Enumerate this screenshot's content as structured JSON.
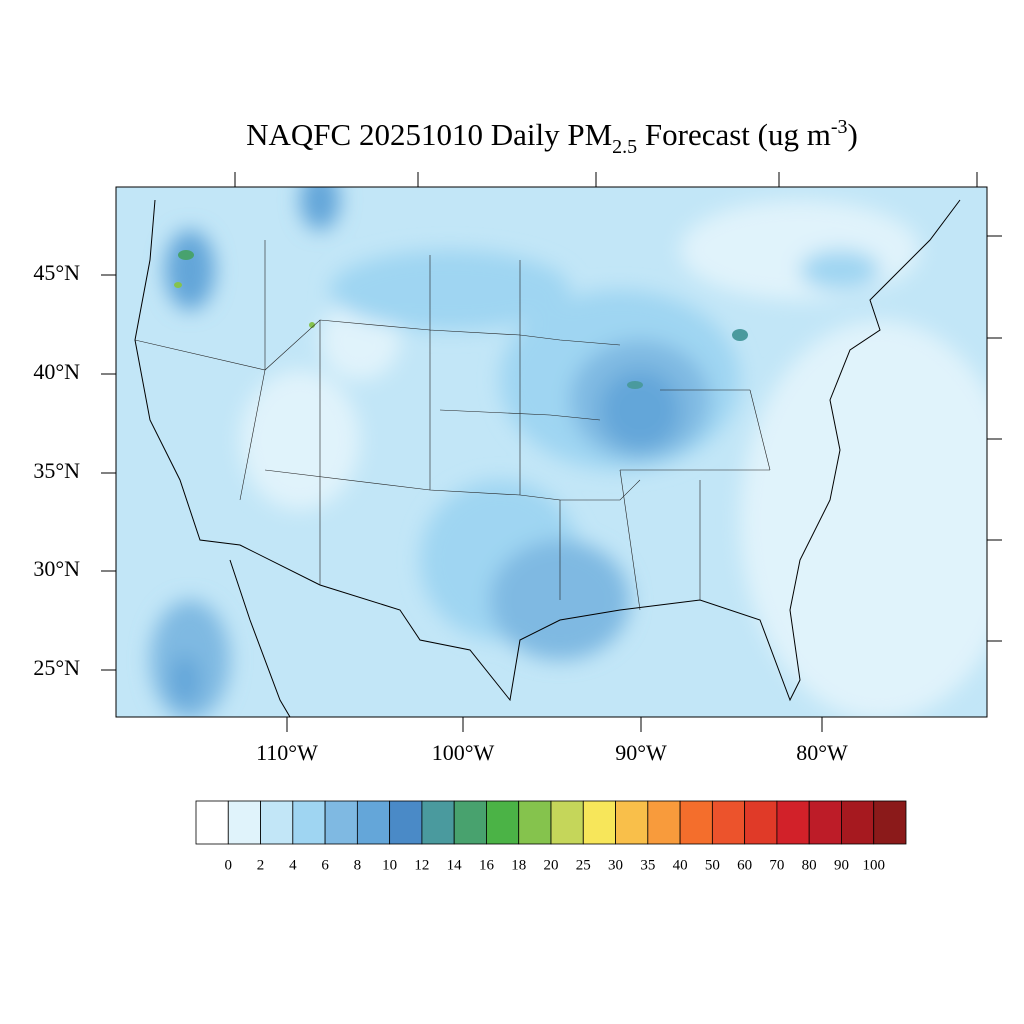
{
  "title": {
    "main": "NAQFC 20251010 Daily PM",
    "subscript": "2.5",
    "rest": " Forecast (ug m",
    "superscript": "-3",
    "end": ")"
  },
  "map": {
    "latitude_labels": [
      "45°N",
      "40°N",
      "35°N",
      "30°N",
      "25°N"
    ],
    "longitude_labels": [
      "110°W",
      "100°W",
      "90°W",
      "80°W"
    ]
  },
  "colorbar": {
    "labels": [
      "0",
      "2",
      "4",
      "6",
      "8",
      "10",
      "12",
      "14",
      "16",
      "18",
      "20",
      "25",
      "30",
      "35",
      "40",
      "50",
      "60",
      "70",
      "80",
      "90",
      "100"
    ],
    "colors": [
      "#ffffff",
      "#e0f3fb",
      "#c2e6f7",
      "#9fd5f2",
      "#7fb9e2",
      "#64a6d9",
      "#4a8ac7",
      "#4a9a9e",
      "#48a26e",
      "#4bb346",
      "#85c34d",
      "#c5d65a",
      "#f7e65a",
      "#f9bf4a",
      "#f89b3c",
      "#f46e2c",
      "#ec532c",
      "#e03a28",
      "#d22129",
      "#bd1c28",
      "#a6191f",
      "#8b1a1a"
    ]
  }
}
